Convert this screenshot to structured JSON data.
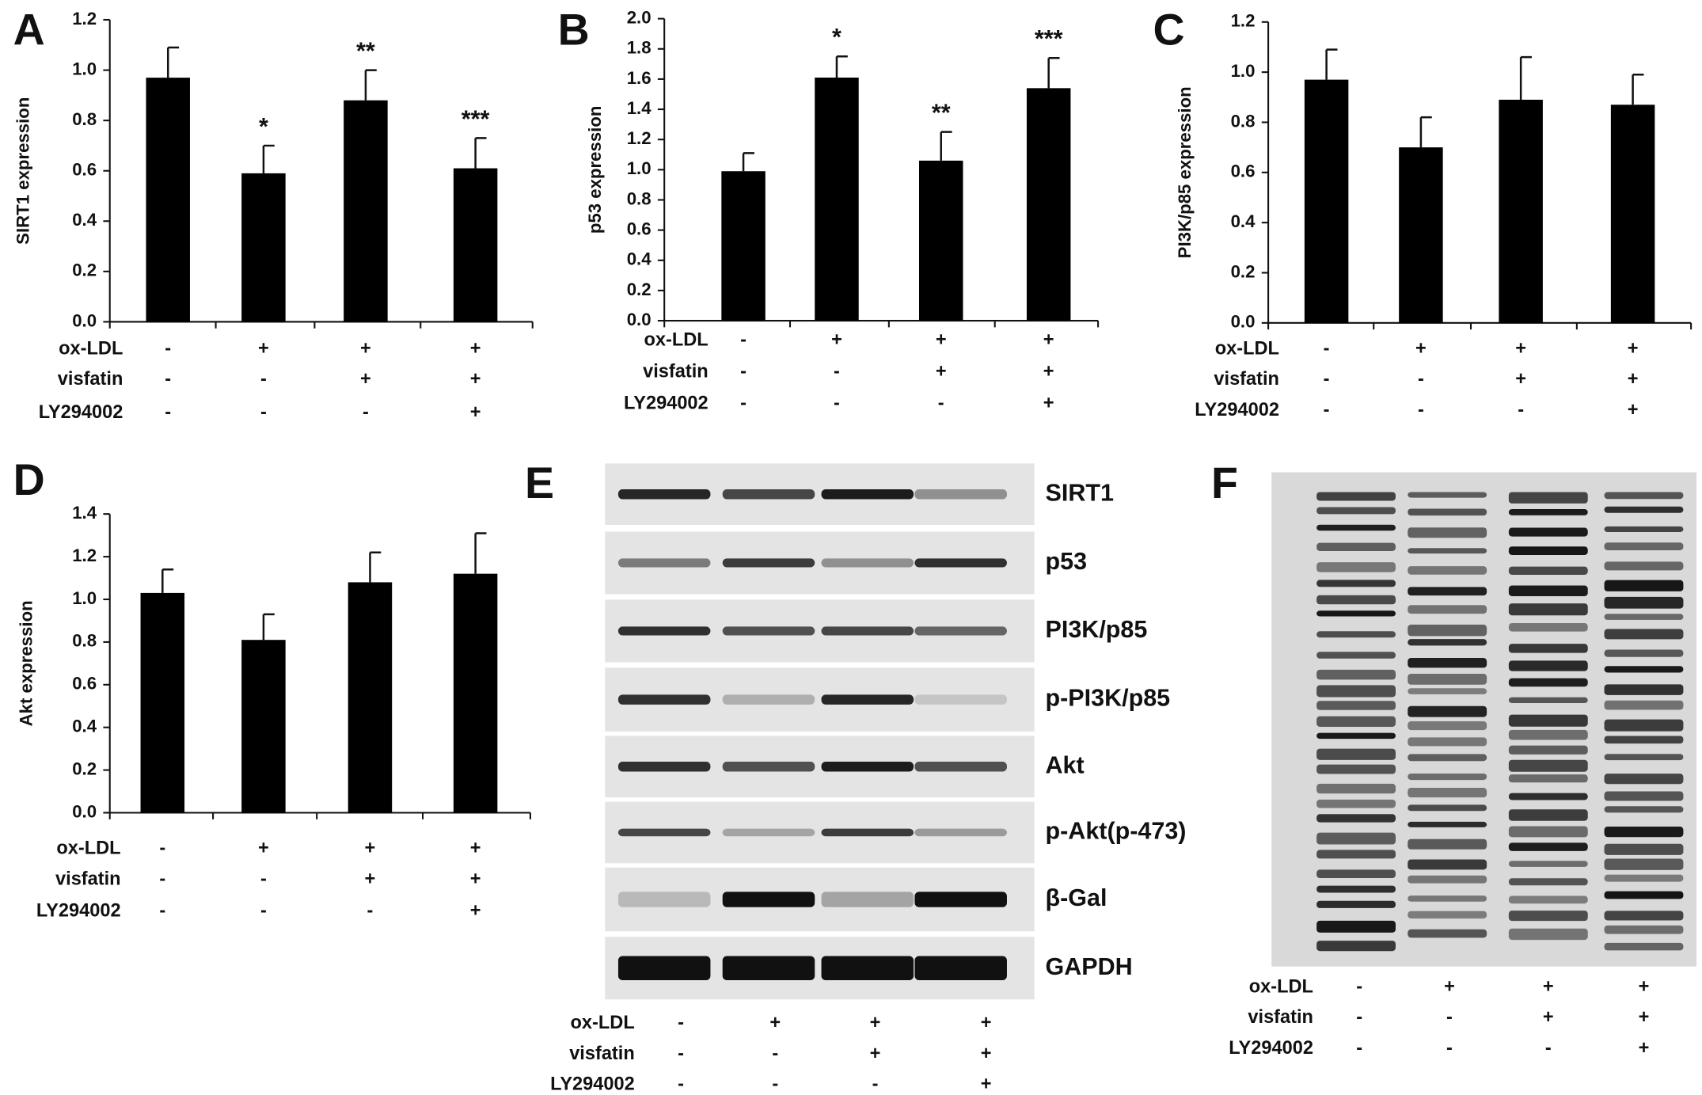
{
  "chart_data": [
    {
      "type": "bar",
      "y_label": "SIRT1 expression",
      "categories": [
        null,
        null,
        null,
        null
      ],
      "values": [
        0.97,
        0.59,
        0.88,
        0.61
      ],
      "errors": [
        0.12,
        0.11,
        0.12,
        0.12
      ],
      "annotations": [
        null,
        "*",
        "**",
        "***"
      ],
      "color": "#000000",
      "ylim": [
        0,
        1.2
      ],
      "yticks": [
        {
          "value": 0,
          "label": "0.0"
        },
        0.2,
        0.4,
        0.6,
        0.8,
        {
          "value": 1,
          "label": "1.0"
        },
        1.2
      ],
      "treatments": [
        {
          "label": "ox-LDL",
          "signs": [
            "-",
            "+",
            "+",
            "+"
          ]
        },
        {
          "label": "visfatin",
          "signs": [
            "-",
            "-",
            "+",
            "+"
          ]
        },
        {
          "label": "LY294002",
          "signs": [
            "-",
            "-",
            "-",
            "+"
          ]
        }
      ]
    },
    {
      "type": "bar",
      "y_label": "p53 expression",
      "categories": [
        null,
        null,
        null,
        null
      ],
      "values": [
        0.99,
        1.61,
        1.06,
        1.54
      ],
      "errors": [
        0.12,
        0.14,
        0.19,
        0.2
      ],
      "annotations": [
        null,
        "*",
        "**",
        "***"
      ],
      "color": "#000000",
      "ylim": [
        0,
        2
      ],
      "yticks": [
        {
          "value": 0,
          "label": "0.0"
        },
        0.2,
        0.4,
        0.6,
        0.8,
        {
          "value": 1,
          "label": "1.0"
        },
        1.2,
        1.4,
        1.6,
        1.8,
        {
          "value": 2,
          "label": "2.0"
        }
      ],
      "treatments": [
        {
          "label": "ox-LDL",
          "signs": [
            "-",
            "+",
            "+",
            "+"
          ]
        },
        {
          "label": "visfatin",
          "signs": [
            "-",
            "-",
            "+",
            "+"
          ]
        },
        {
          "label": "LY294002",
          "signs": [
            "-",
            "-",
            "-",
            "+"
          ]
        }
      ]
    },
    {
      "type": "bar",
      "y_label": "PI3K/p85  expression",
      "categories": [
        null,
        null,
        null,
        null
      ],
      "values": [
        0.97,
        0.7,
        0.89,
        0.87
      ],
      "errors": [
        0.12,
        0.12,
        0.17,
        0.12
      ],
      "color": "#000000",
      "ylim": [
        0,
        1.2
      ],
      "yticks": [
        {
          "value": 0,
          "label": "0.0"
        },
        0.2,
        0.4,
        0.6,
        0.8,
        {
          "value": 1,
          "label": "1.0"
        },
        1.2
      ],
      "treatments": [
        {
          "label": "ox-LDL",
          "signs": [
            "-",
            "+",
            "+",
            "+"
          ]
        },
        {
          "label": "visfatin",
          "signs": [
            "-",
            "-",
            "+",
            "+"
          ]
        },
        {
          "label": "LY294002",
          "signs": [
            "-",
            "-",
            "-",
            "+"
          ]
        }
      ]
    },
    {
      "type": "bar",
      "y_label": "Akt expression",
      "categories": [
        null,
        null,
        null,
        null
      ],
      "values": [
        1.03,
        0.81,
        1.08,
        1.12
      ],
      "errors": [
        0.11,
        0.12,
        0.14,
        0.19
      ],
      "color": "#000000",
      "ylim": [
        0,
        1.4
      ],
      "yticks": [
        {
          "value": 0,
          "label": "0.0"
        },
        0.2,
        0.4,
        0.6,
        0.8,
        {
          "value": 1,
          "label": "1.0"
        },
        1.2,
        1.4
      ],
      "treatments": [
        {
          "label": "ox-LDL",
          "signs": [
            "-",
            "+",
            "+",
            "+"
          ]
        },
        {
          "label": "visfatin",
          "signs": [
            "-",
            "-",
            "+",
            "+"
          ]
        },
        {
          "label": "LY294002",
          "signs": [
            "-",
            "-",
            "-",
            "+"
          ]
        }
      ]
    }
  ],
  "panel_labels": [
    "A",
    "B",
    "C",
    "D",
    "E",
    "F"
  ],
  "blot_E": {
    "bands": [
      "SIRT1",
      "p53",
      "PI3K/p85",
      "p-PI3K/p85",
      "Akt",
      "p-Akt(p-473)",
      "β-Gal",
      "GAPDH"
    ],
    "treatments": [
      {
        "label": "ox-LDL",
        "signs": [
          "-",
          "+",
          "+",
          "+"
        ]
      },
      {
        "label": "visfatin",
        "signs": [
          "-",
          "-",
          "+",
          "+"
        ]
      },
      {
        "label": "LY294002",
        "signs": [
          "-",
          "-",
          "-",
          "+"
        ]
      }
    ]
  },
  "blot_F": {
    "treatments": [
      {
        "label": "ox-LDL",
        "signs": [
          "-",
          "+",
          "+",
          "+"
        ]
      },
      {
        "label": "visfatin",
        "signs": [
          "-",
          "-",
          "+",
          "+"
        ]
      },
      {
        "label": "LY294002",
        "signs": [
          "-",
          "-",
          "-",
          "+"
        ]
      }
    ]
  }
}
